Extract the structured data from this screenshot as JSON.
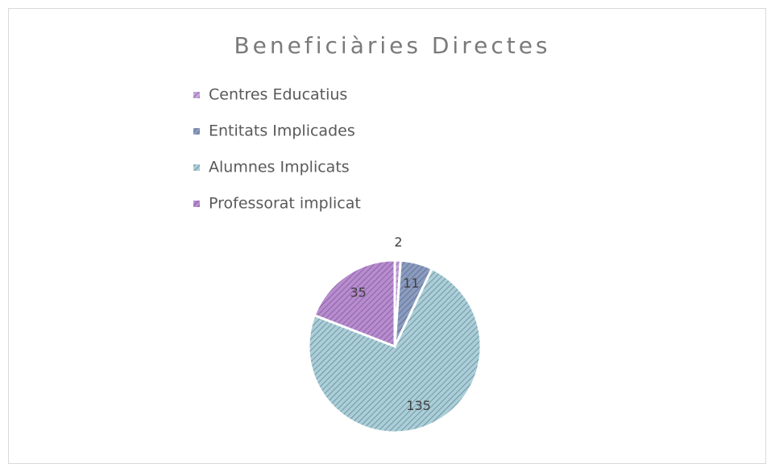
{
  "chart_data": {
    "type": "pie",
    "title": "Beneficiàries Directes",
    "categories": [
      "Centres Educatius",
      "Entitats Implicades",
      "Alumnes Implicats",
      "Professorat implicat"
    ],
    "values": [
      2,
      11,
      135,
      35
    ],
    "colors": [
      "#c7a3dc",
      "#8a9cc0",
      "#a9cfd8",
      "#b98bd0"
    ],
    "legend": "top"
  }
}
